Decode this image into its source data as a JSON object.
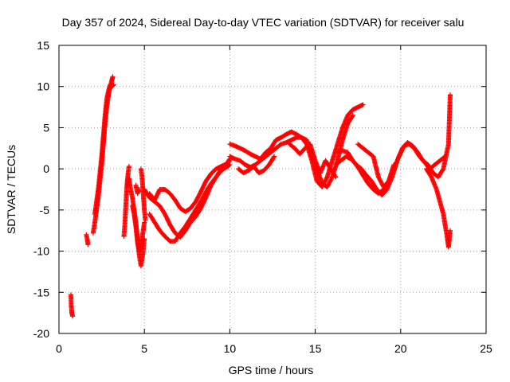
{
  "chart_data": {
    "type": "scatter",
    "title": "Day 357 of 2024, Sidereal Day-to-day VTEC variation (SDTVAR) for receiver salu",
    "xlabel": "GPS time / hours",
    "ylabel": "SDTVAR / TECUs",
    "xlim": [
      0,
      25
    ],
    "ylim": [
      -20,
      15
    ],
    "xticks": [
      "0",
      "5",
      "10",
      "15",
      "20",
      "25"
    ],
    "yticks": [
      "-20",
      "-15",
      "-10",
      "-5",
      "0",
      "5",
      "10",
      "15"
    ],
    "grid": true,
    "marker": "+",
    "series": [
      {
        "name": "SDTVAR",
        "color": "#ff0000",
        "traces": [
          [
            [
              0.7,
              -15.3
            ],
            [
              0.72,
              -16.5
            ],
            [
              0.75,
              -17.5
            ],
            [
              0.8,
              -17.9
            ]
          ],
          [
            [
              1.6,
              -8.0
            ],
            [
              1.65,
              -8.5
            ],
            [
              1.7,
              -9.2
            ]
          ],
          [
            [
              2.0,
              -7.8
            ],
            [
              2.1,
              -6.5
            ],
            [
              2.2,
              -5.0
            ],
            [
              2.3,
              -3.5
            ],
            [
              2.4,
              -1.5
            ],
            [
              2.5,
              0.5
            ],
            [
              2.6,
              3.0
            ],
            [
              2.7,
              5.5
            ],
            [
              2.8,
              7.5
            ],
            [
              2.9,
              9.0
            ],
            [
              3.0,
              10.0
            ],
            [
              3.1,
              10.8
            ],
            [
              3.15,
              11.2
            ]
          ],
          [
            [
              2.1,
              -5.5
            ],
            [
              2.2,
              -4.0
            ],
            [
              2.3,
              -2.5
            ],
            [
              2.4,
              -0.5
            ],
            [
              2.5,
              1.5
            ],
            [
              2.6,
              4.0
            ],
            [
              2.7,
              6.5
            ],
            [
              2.8,
              8.5
            ],
            [
              2.9,
              9.5
            ],
            [
              3.0,
              10.2
            ],
            [
              3.1,
              10.0
            ],
            [
              3.2,
              10.2
            ]
          ],
          [
            [
              3.8,
              -8.2
            ],
            [
              3.85,
              -7.0
            ],
            [
              3.9,
              -5.0
            ],
            [
              3.95,
              -3.0
            ],
            [
              4.0,
              -1.5
            ],
            [
              4.05,
              -0.5
            ],
            [
              4.1,
              0.3
            ]
          ],
          [
            [
              4.0,
              -2.0
            ],
            [
              4.1,
              -1.2
            ],
            [
              4.2,
              -2.5
            ],
            [
              4.3,
              -3.5
            ],
            [
              4.4,
              -5.0
            ],
            [
              4.5,
              -6.5
            ],
            [
              4.6,
              -8.5
            ],
            [
              4.7,
              -10.5
            ],
            [
              4.8,
              -11.8
            ],
            [
              4.9,
              -10.5
            ],
            [
              5.0,
              -8.5
            ]
          ],
          [
            [
              4.3,
              -4.5
            ],
            [
              4.4,
              -5.5
            ],
            [
              4.5,
              -7.0
            ],
            [
              4.6,
              -9.0
            ],
            [
              4.7,
              -10.0
            ],
            [
              4.8,
              -9.5
            ],
            [
              4.9,
              -8.0
            ],
            [
              5.0,
              -6.5
            ]
          ],
          [
            [
              4.8,
              0.0
            ],
            [
              4.85,
              -0.8
            ],
            [
              4.9,
              -2.0
            ],
            [
              4.95,
              -3.5
            ],
            [
              5.0,
              -5.0
            ],
            [
              5.05,
              -6.2
            ]
          ],
          [
            [
              4.5,
              -2.0
            ],
            [
              4.6,
              -3.0
            ],
            [
              4.7,
              -2.5
            ]
          ],
          [
            [
              5.0,
              -2.5
            ],
            [
              5.3,
              -3.5
            ],
            [
              5.6,
              -4.0
            ],
            [
              5.9,
              -4.5
            ],
            [
              6.2,
              -5.5
            ],
            [
              6.5,
              -6.8
            ],
            [
              6.8,
              -7.8
            ],
            [
              7.1,
              -8.3
            ],
            [
              7.4,
              -7.5
            ],
            [
              7.7,
              -6.5
            ],
            [
              8.0,
              -5.8
            ],
            [
              8.3,
              -4.8
            ],
            [
              8.6,
              -3.5
            ],
            [
              8.9,
              -2.0
            ],
            [
              9.2,
              -1.0
            ],
            [
              9.5,
              0.0
            ],
            [
              9.8,
              0.5
            ],
            [
              10.0,
              1.0
            ]
          ],
          [
            [
              5.3,
              -5.5
            ],
            [
              5.6,
              -6.5
            ],
            [
              5.9,
              -7.5
            ],
            [
              6.2,
              -8.2
            ],
            [
              6.5,
              -8.8
            ],
            [
              6.8,
              -8.8
            ],
            [
              7.1,
              -7.8
            ],
            [
              7.4,
              -7.0
            ],
            [
              7.7,
              -6.0
            ],
            [
              8.0,
              -5.0
            ],
            [
              8.3,
              -4.0
            ],
            [
              8.6,
              -2.8
            ],
            [
              8.9,
              -1.8
            ],
            [
              9.2,
              -1.0
            ],
            [
              9.5,
              -0.2
            ],
            [
              9.8,
              0.2
            ],
            [
              10.0,
              0.5
            ]
          ],
          [
            [
              5.3,
              -3.0
            ],
            [
              5.6,
              -3.8
            ],
            [
              5.9,
              -2.5
            ],
            [
              6.2,
              -2.5
            ],
            [
              6.5,
              -3.0
            ],
            [
              6.8,
              -3.8
            ],
            [
              7.1,
              -4.8
            ],
            [
              7.4,
              -5.2
            ],
            [
              7.7,
              -4.8
            ],
            [
              8.0,
              -4.0
            ],
            [
              8.3,
              -2.8
            ],
            [
              8.6,
              -1.5
            ],
            [
              8.9,
              -0.6
            ],
            [
              9.2,
              0.0
            ],
            [
              9.5,
              0.3
            ],
            [
              9.8,
              0.6
            ],
            [
              10.0,
              1.2
            ]
          ],
          [
            [
              10.0,
              3.0
            ],
            [
              10.3,
              2.8
            ],
            [
              10.6,
              2.5
            ],
            [
              10.9,
              2.2
            ],
            [
              11.2,
              1.8
            ],
            [
              11.5,
              1.5
            ],
            [
              11.8,
              1.2
            ],
            [
              12.1,
              2.0
            ],
            [
              12.4,
              2.5
            ],
            [
              12.7,
              3.5
            ],
            [
              13.0,
              3.8
            ],
            [
              13.3,
              4.2
            ],
            [
              13.6,
              4.5
            ],
            [
              13.9,
              4.2
            ],
            [
              14.2,
              3.8
            ],
            [
              14.5,
              3.0
            ],
            [
              14.8,
              1.0
            ],
            [
              15.1,
              -1.5
            ],
            [
              15.4,
              -2.2
            ],
            [
              15.7,
              -1.0
            ],
            [
              16.0,
              1.0
            ],
            [
              16.3,
              3.0
            ],
            [
              16.6,
              5.0
            ],
            [
              16.9,
              6.5
            ],
            [
              17.2,
              7.2
            ],
            [
              17.5,
              7.5
            ],
            [
              17.8,
              7.8
            ]
          ],
          [
            [
              10.0,
              1.5
            ],
            [
              10.3,
              1.2
            ],
            [
              10.6,
              1.0
            ],
            [
              10.9,
              0.5
            ],
            [
              11.2,
              0.2
            ],
            [
              11.5,
              0.5
            ],
            [
              11.8,
              1.0
            ],
            [
              12.1,
              1.5
            ],
            [
              12.4,
              2.0
            ],
            [
              12.7,
              2.5
            ],
            [
              13.0,
              3.0
            ],
            [
              13.3,
              3.2
            ],
            [
              13.6,
              3.5
            ],
            [
              13.9,
              3.8
            ],
            [
              14.2,
              3.8
            ],
            [
              14.5,
              3.5
            ],
            [
              14.8,
              2.0
            ],
            [
              15.1,
              0.0
            ],
            [
              15.4,
              -1.8
            ],
            [
              15.7,
              -2.2
            ],
            [
              16.0,
              -1.0
            ],
            [
              16.3,
              1.0
            ],
            [
              16.6,
              3.5
            ],
            [
              16.9,
              5.5
            ],
            [
              17.2,
              6.5
            ]
          ],
          [
            [
              10.5,
              0.0
            ],
            [
              10.8,
              -0.5
            ],
            [
              11.1,
              -0.2
            ],
            [
              11.4,
              0.3
            ],
            [
              11.7,
              -0.5
            ],
            [
              12.0,
              -0.2
            ],
            [
              12.3,
              0.5
            ],
            [
              12.6,
              1.5
            ]
          ],
          [
            [
              13.5,
              3.0
            ],
            [
              13.8,
              2.5
            ],
            [
              14.1,
              1.8
            ],
            [
              14.4,
              2.5
            ],
            [
              14.7,
              3.0
            ],
            [
              15.0,
              1.0
            ],
            [
              15.3,
              -0.5
            ],
            [
              15.6,
              1.0
            ],
            [
              15.9,
              0.0
            ],
            [
              16.2,
              -1.0
            ]
          ],
          [
            [
              16.2,
              0.5
            ],
            [
              16.5,
              1.0
            ],
            [
              16.8,
              1.5
            ],
            [
              17.1,
              1.2
            ],
            [
              17.4,
              0.5
            ],
            [
              17.7,
              0.0
            ],
            [
              18.0,
              -0.8
            ],
            [
              18.3,
              -1.5
            ],
            [
              18.6,
              -2.5
            ],
            [
              18.9,
              -3.2
            ],
            [
              19.2,
              -2.5
            ],
            [
              19.5,
              -1.0
            ],
            [
              19.8,
              1.0
            ],
            [
              20.1,
              2.5
            ],
            [
              20.4,
              3.2
            ],
            [
              20.7,
              2.8
            ],
            [
              21.0,
              2.0
            ],
            [
              21.3,
              1.0
            ],
            [
              21.6,
              0.5
            ],
            [
              21.9,
              -0.5
            ],
            [
              22.2,
              -1.0
            ],
            [
              22.5,
              0.0
            ],
            [
              22.8,
              3.0
            ],
            [
              22.85,
              6.0
            ],
            [
              22.9,
              9.0
            ]
          ],
          [
            [
              16.3,
              2.0
            ],
            [
              16.6,
              2.2
            ],
            [
              16.9,
              2.0
            ],
            [
              17.2,
              1.0
            ],
            [
              17.5,
              0.2
            ],
            [
              17.8,
              -0.8
            ],
            [
              18.1,
              -1.8
            ],
            [
              18.4,
              -2.5
            ],
            [
              18.7,
              -3.0
            ],
            [
              19.0,
              -2.5
            ],
            [
              19.3,
              -1.5
            ],
            [
              19.6,
              0.0
            ],
            [
              19.9,
              1.5
            ],
            [
              20.2,
              2.8
            ],
            [
              20.5,
              3.0
            ],
            [
              20.8,
              2.5
            ],
            [
              21.1,
              1.5
            ],
            [
              21.4,
              0.8
            ],
            [
              21.7,
              0.0
            ],
            [
              22.0,
              0.5
            ],
            [
              22.3,
              1.0
            ],
            [
              22.6,
              1.5
            ]
          ],
          [
            [
              17.5,
              3.0
            ],
            [
              17.8,
              2.5
            ],
            [
              18.1,
              2.0
            ],
            [
              18.4,
              1.5
            ],
            [
              18.7,
              -1.0
            ],
            [
              19.0,
              -2.2
            ],
            [
              19.3,
              -1.5
            ],
            [
              19.6,
              0.5
            ]
          ],
          [
            [
              21.5,
              0.0
            ],
            [
              21.8,
              -1.0
            ],
            [
              22.1,
              -2.5
            ],
            [
              22.3,
              -4.0
            ],
            [
              22.5,
              -5.5
            ],
            [
              22.6,
              -6.8
            ],
            [
              22.7,
              -8.0
            ],
            [
              22.8,
              -9.5
            ],
            [
              22.85,
              -8.5
            ],
            [
              22.9,
              -7.5
            ]
          ]
        ]
      }
    ]
  }
}
